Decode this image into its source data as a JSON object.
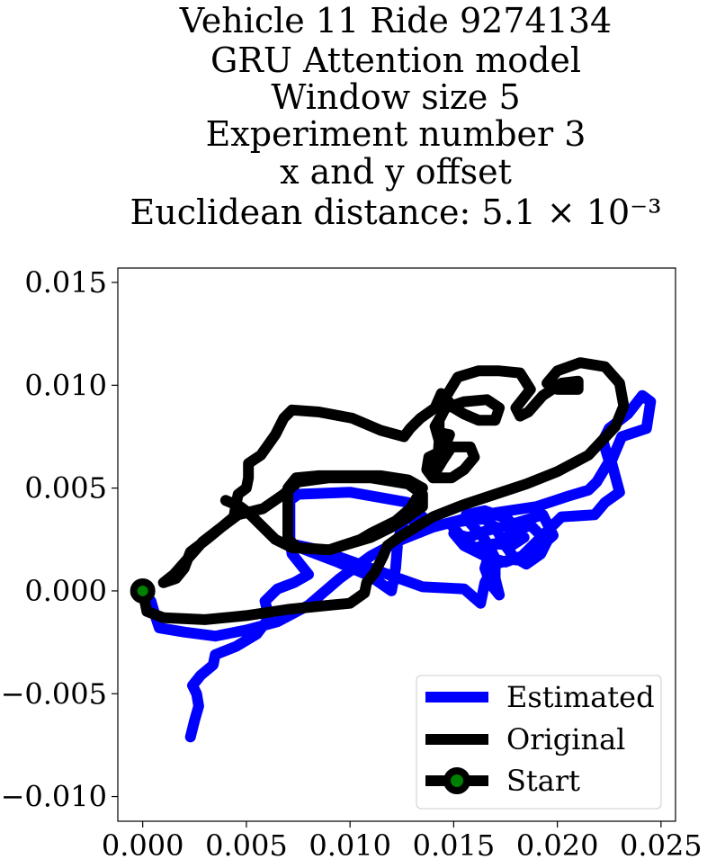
{
  "chart_data": {
    "type": "line",
    "title_lines": [
      "Vehicle 11 Ride 9274134",
      "GRU Attention model",
      "Window size 5",
      "Experiment number 3",
      "x and y offset",
      "Euclidean distance: 5.1 × 10⁻³"
    ],
    "xlabel": "",
    "ylabel": "",
    "xlim": [
      -0.0012,
      0.0257
    ],
    "ylim": [
      -0.0112,
      0.0157
    ],
    "x_ticks": [
      0.0,
      0.005,
      0.01,
      0.015,
      0.02,
      0.025
    ],
    "x_tick_labels": [
      "0.000",
      "0.005",
      "0.010",
      "0.015",
      "0.020",
      "0.025"
    ],
    "y_ticks": [
      -0.01,
      -0.005,
      0.0,
      0.005,
      0.01,
      0.015
    ],
    "y_tick_labels": [
      "−0.010",
      "−0.005",
      "0.000",
      "0.005",
      "0.010",
      "0.015"
    ],
    "grid": false,
    "legend_position": "lower right",
    "legend": [
      "Estimated",
      "Original",
      "Start"
    ],
    "series": [
      {
        "name": "Estimated",
        "color": "#0000ff",
        "points": [
          [
            0.0023,
            -0.0071
          ],
          [
            0.0025,
            -0.0063
          ],
          [
            0.0027,
            -0.0056
          ],
          [
            0.0026,
            -0.005
          ],
          [
            0.0024,
            -0.0046
          ],
          [
            0.0028,
            -0.0041
          ],
          [
            0.0034,
            -0.0036
          ],
          [
            0.0035,
            -0.0031
          ],
          [
            0.0045,
            -0.0027
          ],
          [
            0.0055,
            -0.0021
          ],
          [
            0.0061,
            -0.0013
          ],
          [
            0.0059,
            -0.0005
          ],
          [
            0.0065,
            0.0001
          ],
          [
            0.0073,
            0.0004
          ],
          [
            0.008,
            0.0008
          ],
          [
            0.0072,
            0.0018
          ],
          [
            0.0071,
            0.0026
          ],
          [
            0.0071,
            0.0035
          ],
          [
            0.0071,
            0.0044
          ],
          [
            0.0075,
            0.0047
          ],
          [
            0.01,
            0.0048
          ],
          [
            0.0128,
            0.0043
          ],
          [
            0.0136,
            0.0035
          ],
          [
            0.0126,
            0.0035
          ],
          [
            0.0123,
            0.0024
          ],
          [
            0.0122,
            0.0011
          ],
          [
            0.012,
            0.0
          ],
          [
            0.011,
            0.0007
          ],
          [
            0.0094,
            0.0014
          ],
          [
            0.0081,
            0.0019
          ],
          [
            0.0071,
            0.0023
          ],
          [
            0.0085,
            0.002
          ],
          [
            0.011,
            0.0011
          ],
          [
            0.0135,
            0.0002
          ],
          [
            0.0155,
            0.0001
          ],
          [
            0.0163,
            -0.0006
          ],
          [
            0.0165,
            0.0004
          ],
          [
            0.017,
            0.0013
          ],
          [
            0.018,
            0.0016
          ],
          [
            0.0185,
            0.0013
          ],
          [
            0.0192,
            0.0018
          ],
          [
            0.0195,
            0.0024
          ],
          [
            0.0187,
            0.0032
          ],
          [
            0.0178,
            0.0028
          ],
          [
            0.0168,
            0.0021
          ],
          [
            0.0165,
            0.0011
          ],
          [
            0.0168,
            0.0003
          ],
          [
            0.0172,
            -0.0002
          ],
          [
            0.017,
            0.0006
          ],
          [
            0.017,
            0.0016
          ],
          [
            0.0165,
            0.0025
          ],
          [
            0.0158,
            0.0033
          ],
          [
            0.0156,
            0.0037
          ],
          [
            0.0165,
            0.0039
          ],
          [
            0.0176,
            0.0035
          ],
          [
            0.0184,
            0.0026
          ],
          [
            0.0178,
            0.0022
          ],
          [
            0.017,
            0.0023
          ],
          [
            0.016,
            0.0021
          ],
          [
            0.0154,
            0.0026
          ],
          [
            0.0148,
            0.0033
          ],
          [
            0.0155,
            0.0034
          ],
          [
            0.0165,
            0.0035
          ],
          [
            0.017,
            0.0031
          ],
          [
            0.0175,
            0.0022
          ],
          [
            0.018,
            0.0015
          ],
          [
            0.0189,
            0.0019
          ],
          [
            0.0198,
            0.0027
          ],
          [
            0.0193,
            0.0037
          ],
          [
            0.018,
            0.0033
          ],
          [
            0.0165,
            0.0029
          ],
          [
            0.0157,
            0.0026
          ],
          [
            0.015,
            0.0028
          ],
          [
            0.0155,
            0.0022
          ],
          [
            0.0165,
            0.0017
          ],
          [
            0.0175,
            0.0014
          ],
          [
            0.0183,
            0.0017
          ],
          [
            0.019,
            0.0024
          ],
          [
            0.0202,
            0.0036
          ],
          [
            0.0218,
            0.0037
          ],
          [
            0.0223,
            0.0043
          ],
          [
            0.023,
            0.0048
          ],
          [
            0.0226,
            0.0063
          ],
          [
            0.0231,
            0.0075
          ],
          [
            0.0243,
            0.0079
          ],
          [
            0.0245,
            0.0092
          ],
          [
            0.0241,
            0.0095
          ],
          [
            0.0234,
            0.0086
          ],
          [
            0.0225,
            0.0079
          ],
          [
            0.0222,
            0.0073
          ],
          [
            0.0225,
            0.0063
          ],
          [
            0.0219,
            0.0053
          ],
          [
            0.0215,
            0.0049
          ],
          [
            0.0205,
            0.0046
          ],
          [
            0.019,
            0.0041
          ],
          [
            0.017,
            0.0038
          ],
          [
            0.0155,
            0.0035
          ],
          [
            0.014,
            0.0031
          ],
          [
            0.0125,
            0.0025
          ],
          [
            0.011,
            0.0017
          ],
          [
            0.0095,
            0.0006
          ],
          [
            0.008,
            -0.0007
          ],
          [
            0.0065,
            -0.0015
          ],
          [
            0.005,
            -0.0019
          ],
          [
            0.0035,
            -0.0022
          ],
          [
            0.002,
            -0.002
          ],
          [
            0.0008,
            -0.0018
          ],
          [
            0.0006,
            -0.0012
          ],
          [
            0.0004,
            -0.0005
          ],
          [
            0.0,
            0.0
          ]
        ]
      },
      {
        "name": "Original",
        "color": "#000000",
        "points": [
          [
            0.0,
            0.0
          ],
          [
            0.0002,
            -0.001
          ],
          [
            0.001,
            -0.0013
          ],
          [
            0.003,
            -0.0014
          ],
          [
            0.005,
            -0.0012
          ],
          [
            0.007,
            -0.0009
          ],
          [
            0.009,
            -0.0007
          ],
          [
            0.01,
            -0.0006
          ],
          [
            0.0107,
            -0.0001
          ],
          [
            0.0108,
            0.0004
          ],
          [
            0.0112,
            0.0009
          ],
          [
            0.0116,
            0.0017
          ],
          [
            0.0118,
            0.0022
          ],
          [
            0.0125,
            0.0027
          ],
          [
            0.014,
            0.0036
          ],
          [
            0.0155,
            0.0042
          ],
          [
            0.017,
            0.0047
          ],
          [
            0.0185,
            0.0052
          ],
          [
            0.02,
            0.0058
          ],
          [
            0.0215,
            0.0066
          ],
          [
            0.0228,
            0.008
          ],
          [
            0.0232,
            0.009
          ],
          [
            0.023,
            0.0101
          ],
          [
            0.0223,
            0.0109
          ],
          [
            0.0211,
            0.0111
          ],
          [
            0.02,
            0.0107
          ],
          [
            0.0195,
            0.0101
          ],
          [
            0.02,
            0.0098
          ],
          [
            0.021,
            0.0098
          ],
          [
            0.021,
            0.0102
          ],
          [
            0.0202,
            0.0101
          ],
          [
            0.0193,
            0.0095
          ],
          [
            0.0186,
            0.0087
          ],
          [
            0.0182,
            0.0085
          ],
          [
            0.018,
            0.0089
          ],
          [
            0.0187,
            0.0098
          ],
          [
            0.0182,
            0.0106
          ],
          [
            0.0172,
            0.0107
          ],
          [
            0.0162,
            0.0107
          ],
          [
            0.0152,
            0.0104
          ],
          [
            0.0146,
            0.0094
          ],
          [
            0.015,
            0.0089
          ],
          [
            0.0155,
            0.0086
          ],
          [
            0.0162,
            0.0083
          ],
          [
            0.017,
            0.0083
          ],
          [
            0.0172,
            0.0089
          ],
          [
            0.0166,
            0.0093
          ],
          [
            0.0155,
            0.0092
          ],
          [
            0.0146,
            0.0089
          ],
          [
            0.0143,
            0.0083
          ],
          [
            0.0143,
            0.0077
          ],
          [
            0.0148,
            0.0076
          ],
          [
            0.0146,
            0.0071
          ],
          [
            0.0142,
            0.0067
          ],
          [
            0.0138,
            0.0065
          ],
          [
            0.0137,
            0.0059
          ],
          [
            0.014,
            0.0055
          ],
          [
            0.0149,
            0.0055
          ],
          [
            0.0155,
            0.0059
          ],
          [
            0.016,
            0.0065
          ],
          [
            0.0158,
            0.007
          ],
          [
            0.0149,
            0.007
          ],
          [
            0.0145,
            0.0064
          ],
          [
            0.0142,
            0.0059
          ],
          [
            0.0143,
            0.0073
          ],
          [
            0.0141,
            0.008
          ],
          [
            0.0145,
            0.0087
          ],
          [
            0.0144,
            0.0096
          ],
          [
            0.0141,
            0.0089
          ],
          [
            0.0134,
            0.0084
          ],
          [
            0.0129,
            0.0079
          ],
          [
            0.0126,
            0.0075
          ],
          [
            0.0115,
            0.0078
          ],
          [
            0.0101,
            0.0084
          ],
          [
            0.0085,
            0.0087
          ],
          [
            0.0072,
            0.0088
          ],
          [
            0.0068,
            0.0084
          ],
          [
            0.0064,
            0.0076
          ],
          [
            0.0057,
            0.0066
          ],
          [
            0.0051,
            0.0062
          ],
          [
            0.0051,
            0.0055
          ],
          [
            0.005,
            0.005
          ],
          [
            0.0046,
            0.0047
          ],
          [
            0.0045,
            0.0042
          ],
          [
            0.0044,
            0.0036
          ],
          [
            0.0038,
            0.0031
          ],
          [
            0.0032,
            0.0026
          ],
          [
            0.0027,
            0.0022
          ],
          [
            0.0023,
            0.0019
          ],
          [
            0.002,
            0.0011
          ],
          [
            0.0016,
            0.0006
          ],
          [
            0.001,
            0.0004
          ],
          [
            0.0015,
            0.0008
          ],
          [
            0.0022,
            0.0016
          ],
          [
            0.0029,
            0.0024
          ],
          [
            0.0038,
            0.0031
          ],
          [
            0.0046,
            0.0037
          ],
          [
            0.0058,
            0.004
          ],
          [
            0.0068,
            0.0047
          ],
          [
            0.0075,
            0.0053
          ],
          [
            0.009,
            0.0055
          ],
          [
            0.011,
            0.0055
          ],
          [
            0.0128,
            0.0052
          ],
          [
            0.0135,
            0.0047
          ],
          [
            0.0135,
            0.0041
          ],
          [
            0.0128,
            0.0036
          ],
          [
            0.012,
            0.0031
          ],
          [
            0.011,
            0.0026
          ],
          [
            0.009,
            0.002
          ],
          [
            0.0075,
            0.0021
          ],
          [
            0.007,
            0.0025
          ],
          [
            0.007,
            0.003
          ],
          [
            0.007,
            0.0042
          ],
          [
            0.007,
            0.005
          ],
          [
            0.0074,
            0.0055
          ],
          [
            0.0085,
            0.0056
          ],
          [
            0.01,
            0.0056
          ],
          [
            0.0115,
            0.0056
          ],
          [
            0.0128,
            0.0054
          ],
          [
            0.0135,
            0.005
          ],
          [
            0.0132,
            0.0045
          ],
          [
            0.0129,
            0.004
          ],
          [
            0.0122,
            0.0034
          ],
          [
            0.011,
            0.0028
          ],
          [
            0.0105,
            0.0025
          ],
          [
            0.009,
            0.002
          ],
          [
            0.0072,
            0.0021
          ],
          [
            0.0064,
            0.0025
          ],
          [
            0.0057,
            0.0032
          ],
          [
            0.0051,
            0.0038
          ],
          [
            0.0047,
            0.0041
          ],
          [
            0.004,
            0.0044
          ]
        ]
      }
    ],
    "start_point": {
      "x": 0.0,
      "y": 0.0,
      "label": "Start",
      "marker_fill": "#008000",
      "marker_edge": "#000000"
    }
  }
}
